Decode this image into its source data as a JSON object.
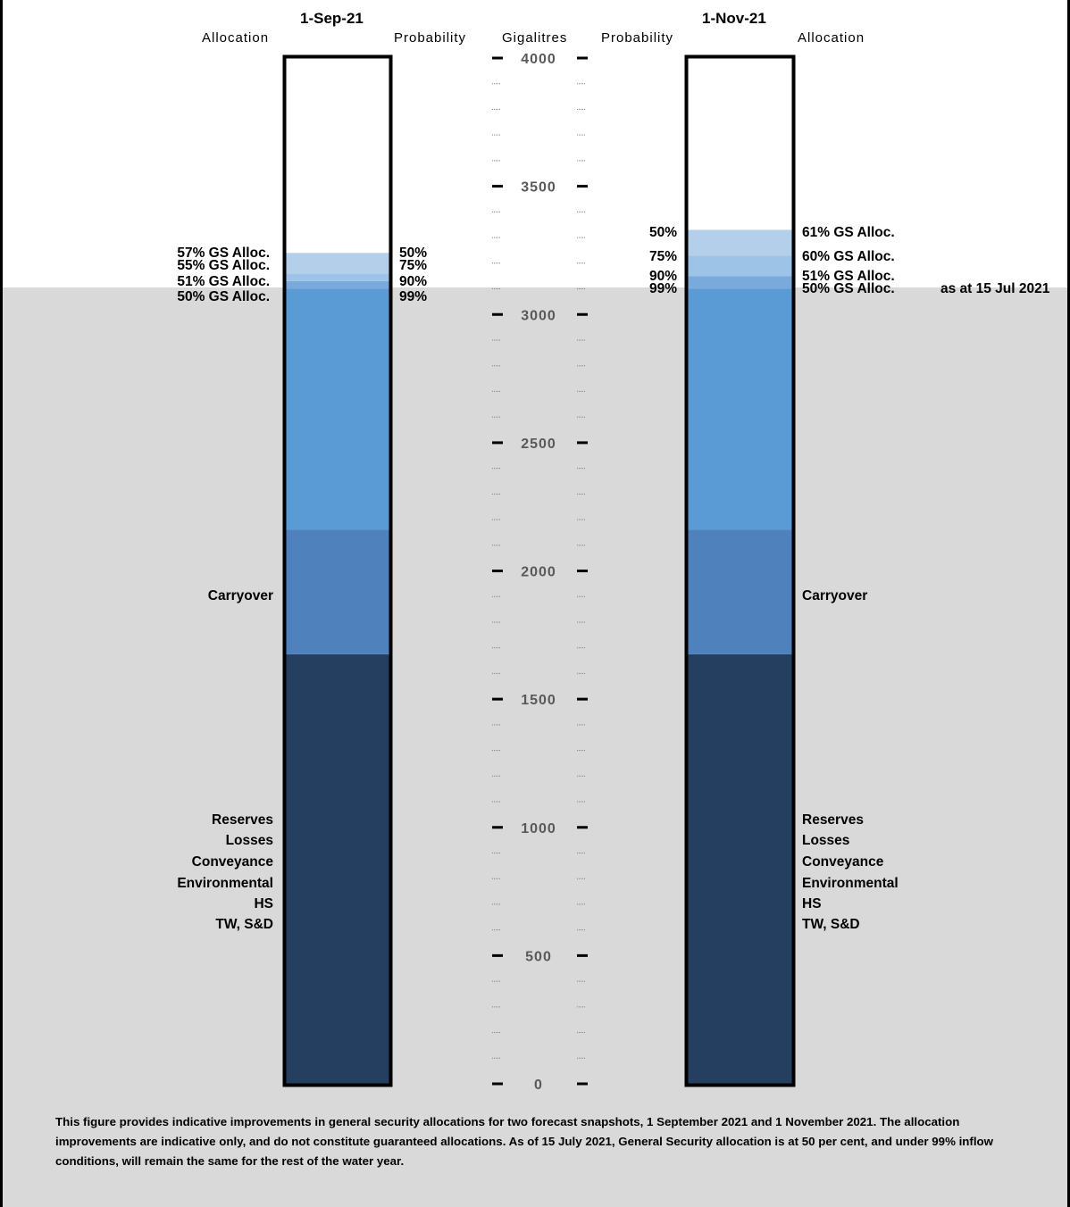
{
  "chart_data": {
    "type": "bar",
    "y_axis": {
      "label": "Gigalitres",
      "min": 0,
      "max": 4000,
      "major_step": 500,
      "minor_step": 100,
      "tick_labels": [
        "0",
        "500",
        "1000",
        "1500",
        "2000",
        "2500",
        "3000",
        "3500",
        "4000"
      ]
    },
    "grid": false,
    "background_band": {
      "from": 0,
      "to": 3100,
      "note": "as at 15 Jul 2021"
    },
    "columns": [
      {
        "date": "1-Sep-21",
        "left_header": "Allocation",
        "right_header": "Probability",
        "segments": [
          {
            "name": "Reserves / Losses / Conveyance / Environmental / HS / TW, S&D",
            "from": 0,
            "to": 1675,
            "color": "#243f60"
          },
          {
            "name": "Carryover",
            "from": 1675,
            "to": 2160,
            "color": "#4f81bd"
          },
          {
            "name": "50% GS Alloc.",
            "from": 2160,
            "to": 3100,
            "color": "#5b9bd5"
          },
          {
            "name": "51% GS Alloc.",
            "from": 3100,
            "to": 3130,
            "color": "#7aaadc"
          },
          {
            "name": "55% GS Alloc.",
            "from": 3130,
            "to": 3160,
            "color": "#9dc3e6"
          },
          {
            "name": "57% GS Alloc.",
            "from": 3160,
            "to": 3240,
            "color": "#b4cfea"
          }
        ]
      },
      {
        "date": "1-Nov-21",
        "left_header": "Probability",
        "right_header": "Allocation",
        "segments": [
          {
            "name": "Reserves / Losses / Conveyance / Environmental / HS / TW, S&D",
            "from": 0,
            "to": 1675,
            "color": "#243f60"
          },
          {
            "name": "Carryover",
            "from": 1675,
            "to": 2160,
            "color": "#4f81bd"
          },
          {
            "name": "50% GS Alloc.",
            "from": 2160,
            "to": 3100,
            "color": "#5b9bd5"
          },
          {
            "name": "51% GS Alloc.",
            "from": 3100,
            "to": 3150,
            "color": "#7aaadc"
          },
          {
            "name": "60% GS Alloc.",
            "from": 3150,
            "to": 3230,
            "color": "#9dc3e6"
          },
          {
            "name": "61% GS Alloc.",
            "from": 3230,
            "to": 3330,
            "color": "#b4cfea"
          }
        ]
      }
    ]
  },
  "text": {
    "col1_date": "1-Sep-21",
    "col1_alloc_header": "Allocation",
    "col1_prob_header": "Probability",
    "axis_header": "Gigalitres",
    "col2_prob_header": "Probability",
    "col2_date": "1-Nov-21",
    "col2_alloc_header": "Allocation",
    "col1_alloc": [
      "57% GS Alloc.",
      "55% GS Alloc.",
      "51% GS Alloc.",
      "50% GS Alloc."
    ],
    "col1_prob": [
      "50%",
      "75%",
      "90%",
      "99%"
    ],
    "col2_prob": [
      "50%",
      "75%",
      "90%",
      "99%"
    ],
    "col2_alloc": [
      "61% GS Alloc.",
      "60% GS Alloc.",
      "51% GS Alloc.",
      "50% GS Alloc."
    ],
    "as_at": "as at 15 Jul 2021",
    "carryover": "Carryover",
    "reserves_lines": [
      "Reserves",
      "Losses",
      "Conveyance",
      "Environmental",
      "HS",
      "TW, S&D"
    ],
    "footnote": "This figure provides indicative improvements in general security allocations for two forecast snapshots, 1 September 2021 and 1 November 2021. The allocation improvements are indicative only, and do not constitute guaranteed allocations. As of 15 July 2021, General Security allocation is at 50 per cent, and under 99% inflow conditions, will remain the same for the rest of the water year."
  }
}
